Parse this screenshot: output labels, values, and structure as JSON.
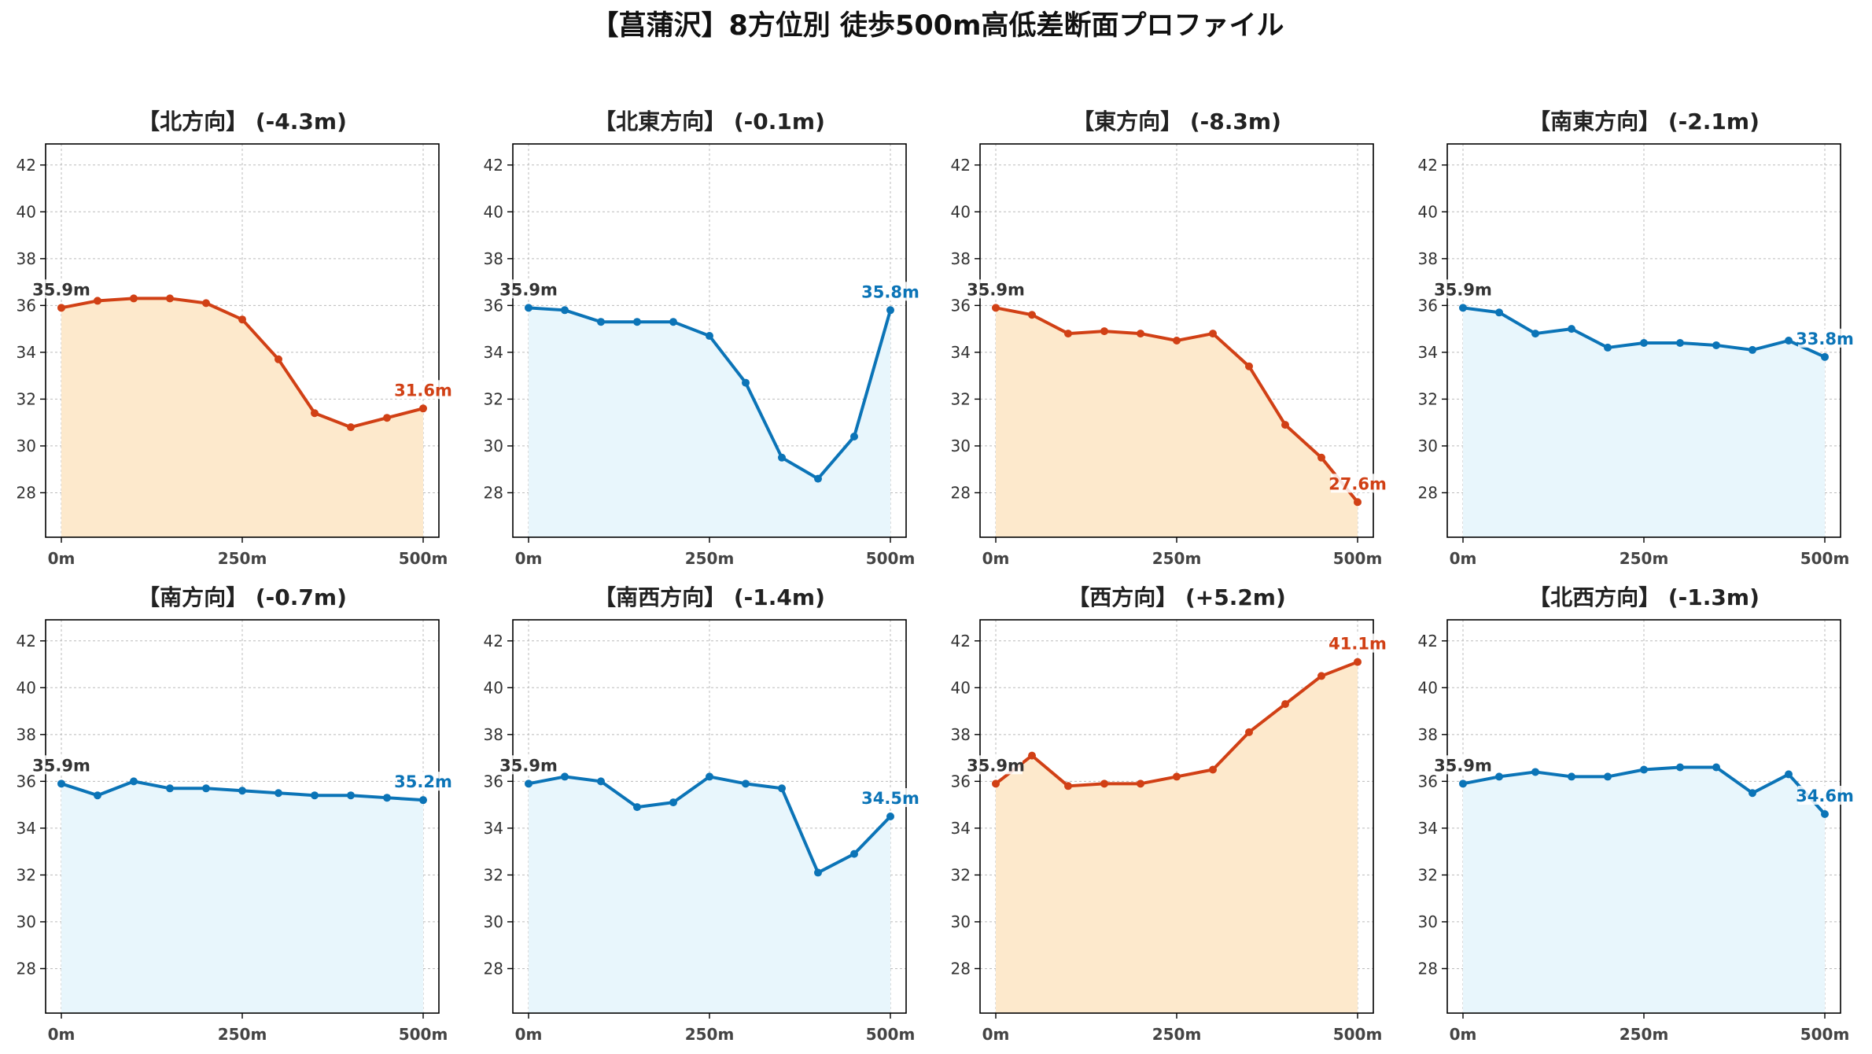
{
  "figure": {
    "title": "【菖蒲沢】8方位別 徒歩500m高低差断面プロファイル"
  },
  "colors": {
    "descent": "#d14015",
    "descent_fill": "#fde9cc",
    "ascent_like": "#0b74b7",
    "ascent_fill": "#e8f6fc",
    "start_label": "#333333",
    "grid": "#bbbbbb"
  },
  "chart_data": [
    {
      "type": "line",
      "title": "【北方向】 (-4.3m)",
      "x": [
        0,
        50,
        100,
        150,
        200,
        250,
        300,
        350,
        400,
        450,
        500
      ],
      "values": [
        35.9,
        36.2,
        36.3,
        36.3,
        36.1,
        35.4,
        33.7,
        31.4,
        30.8,
        31.2,
        31.6
      ],
      "ylim": [
        26.1,
        42.9
      ],
      "yticks": [
        28,
        30,
        32,
        34,
        36,
        38,
        40,
        42
      ],
      "xticks": [
        0,
        250,
        500
      ],
      "xtick_labels": [
        "0m",
        "250m",
        "500m"
      ],
      "start_label": "35.9m",
      "end_label": "31.6m",
      "style": "orange",
      "grid": true
    },
    {
      "type": "line",
      "title": "【北東方向】 (-0.1m)",
      "x": [
        0,
        50,
        100,
        150,
        200,
        250,
        300,
        350,
        400,
        450,
        500
      ],
      "values": [
        35.9,
        35.8,
        35.3,
        35.3,
        35.3,
        34.7,
        32.7,
        29.5,
        28.6,
        30.4,
        35.8
      ],
      "ylim": [
        26.1,
        42.9
      ],
      "yticks": [
        28,
        30,
        32,
        34,
        36,
        38,
        40,
        42
      ],
      "xticks": [
        0,
        250,
        500
      ],
      "xtick_labels": [
        "0m",
        "250m",
        "500m"
      ],
      "start_label": "35.9m",
      "end_label": "35.8m",
      "style": "blue",
      "grid": true
    },
    {
      "type": "line",
      "title": "【東方向】 (-8.3m)",
      "x": [
        0,
        50,
        100,
        150,
        200,
        250,
        300,
        350,
        400,
        450,
        500
      ],
      "values": [
        35.9,
        35.6,
        34.8,
        34.9,
        34.8,
        34.5,
        34.8,
        33.4,
        30.9,
        29.5,
        27.6
      ],
      "ylim": [
        26.1,
        42.9
      ],
      "yticks": [
        28,
        30,
        32,
        34,
        36,
        38,
        40,
        42
      ],
      "xticks": [
        0,
        250,
        500
      ],
      "xtick_labels": [
        "0m",
        "250m",
        "500m"
      ],
      "start_label": "35.9m",
      "end_label": "27.6m",
      "style": "orange",
      "grid": true
    },
    {
      "type": "line",
      "title": "【南東方向】 (-2.1m)",
      "x": [
        0,
        50,
        100,
        150,
        200,
        250,
        300,
        350,
        400,
        450,
        500
      ],
      "values": [
        35.9,
        35.7,
        34.8,
        35.0,
        34.2,
        34.4,
        34.4,
        34.3,
        34.1,
        34.5,
        33.8
      ],
      "ylim": [
        26.1,
        42.9
      ],
      "yticks": [
        28,
        30,
        32,
        34,
        36,
        38,
        40,
        42
      ],
      "xticks": [
        0,
        250,
        500
      ],
      "xtick_labels": [
        "0m",
        "250m",
        "500m"
      ],
      "start_label": "35.9m",
      "end_label": "33.8m",
      "style": "blue",
      "grid": true
    },
    {
      "type": "line",
      "title": "【南方向】 (-0.7m)",
      "x": [
        0,
        50,
        100,
        150,
        200,
        250,
        300,
        350,
        400,
        450,
        500
      ],
      "values": [
        35.9,
        35.4,
        36.0,
        35.7,
        35.7,
        35.6,
        35.5,
        35.4,
        35.4,
        35.3,
        35.2
      ],
      "ylim": [
        26.1,
        42.9
      ],
      "yticks": [
        28,
        30,
        32,
        34,
        36,
        38,
        40,
        42
      ],
      "xticks": [
        0,
        250,
        500
      ],
      "xtick_labels": [
        "0m",
        "250m",
        "500m"
      ],
      "start_label": "35.9m",
      "end_label": "35.2m",
      "style": "blue",
      "grid": true
    },
    {
      "type": "line",
      "title": "【南西方向】 (-1.4m)",
      "x": [
        0,
        50,
        100,
        150,
        200,
        250,
        300,
        350,
        400,
        450,
        500
      ],
      "values": [
        35.9,
        36.2,
        36.0,
        34.9,
        35.1,
        36.2,
        35.9,
        35.7,
        32.1,
        32.9,
        34.5
      ],
      "ylim": [
        26.1,
        42.9
      ],
      "yticks": [
        28,
        30,
        32,
        34,
        36,
        38,
        40,
        42
      ],
      "xticks": [
        0,
        250,
        500
      ],
      "xtick_labels": [
        "0m",
        "250m",
        "500m"
      ],
      "start_label": "35.9m",
      "end_label": "34.5m",
      "style": "blue",
      "grid": true
    },
    {
      "type": "line",
      "title": "【西方向】 (+5.2m)",
      "x": [
        0,
        50,
        100,
        150,
        200,
        250,
        300,
        350,
        400,
        450,
        500
      ],
      "values": [
        35.9,
        37.1,
        35.8,
        35.9,
        35.9,
        36.2,
        36.5,
        38.1,
        39.3,
        40.5,
        41.1
      ],
      "ylim": [
        26.1,
        42.9
      ],
      "yticks": [
        28,
        30,
        32,
        34,
        36,
        38,
        40,
        42
      ],
      "xticks": [
        0,
        250,
        500
      ],
      "xtick_labels": [
        "0m",
        "250m",
        "500m"
      ],
      "start_label": "35.9m",
      "end_label": "41.1m",
      "style": "orange",
      "grid": true
    },
    {
      "type": "line",
      "title": "【北西方向】 (-1.3m)",
      "x": [
        0,
        50,
        100,
        150,
        200,
        250,
        300,
        350,
        400,
        450,
        500
      ],
      "values": [
        35.9,
        36.2,
        36.4,
        36.2,
        36.2,
        36.5,
        36.6,
        36.6,
        35.5,
        36.3,
        34.6
      ],
      "ylim": [
        26.1,
        42.9
      ],
      "yticks": [
        28,
        30,
        32,
        34,
        36,
        38,
        40,
        42
      ],
      "xticks": [
        0,
        250,
        500
      ],
      "xtick_labels": [
        "0m",
        "250m",
        "500m"
      ],
      "start_label": "35.9m",
      "end_label": "34.6m",
      "style": "blue",
      "grid": true
    }
  ]
}
